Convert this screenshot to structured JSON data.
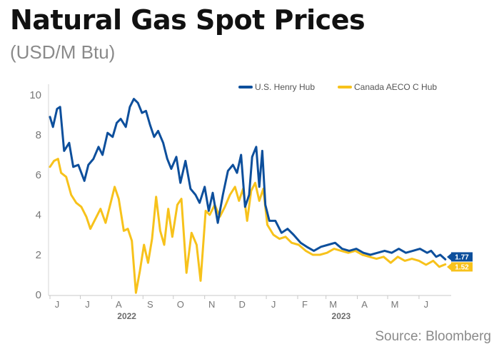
{
  "chart_data": {
    "type": "line",
    "title": "Natural Gas Spot Prices",
    "subtitle": "(USD/M Btu)",
    "source": "Source: Bloomberg",
    "ylim": [
      0,
      10
    ],
    "y_ticks": [
      "0",
      "2",
      "4",
      "6",
      "8",
      "10"
    ],
    "x_range": [
      "2022-06-01",
      "2023-06-30"
    ],
    "x_ticks": [
      {
        "label": "J",
        "date": "2022-06-01"
      },
      {
        "label": "J",
        "date": "2022-07-01"
      },
      {
        "label": "A",
        "date": "2022-08-01"
      },
      {
        "label": "S",
        "date": "2022-09-01"
      },
      {
        "label": "O",
        "date": "2022-10-01"
      },
      {
        "label": "N",
        "date": "2022-11-01"
      },
      {
        "label": "D",
        "date": "2022-12-01"
      },
      {
        "label": "J",
        "date": "2023-01-01"
      },
      {
        "label": "F",
        "date": "2023-02-01"
      },
      {
        "label": "M",
        "date": "2023-03-01"
      },
      {
        "label": "A",
        "date": "2023-04-01"
      },
      {
        "label": "M",
        "date": "2023-05-01"
      },
      {
        "label": "J",
        "date": "2023-06-01"
      }
    ],
    "years": [
      {
        "label": "2022",
        "date": "2022-08-16"
      },
      {
        "label": "2023",
        "date": "2023-03-16"
      }
    ],
    "grid": false,
    "legend_position": "top-right",
    "series": [
      {
        "name": "U.S. Henry Hub",
        "color": "#0d4f9c",
        "end_label": "1.77",
        "points": [
          [
            "2022-06-01",
            8.9
          ],
          [
            "2022-06-04",
            8.4
          ],
          [
            "2022-06-08",
            9.3
          ],
          [
            "2022-06-11",
            9.4
          ],
          [
            "2022-06-15",
            7.2
          ],
          [
            "2022-06-20",
            7.6
          ],
          [
            "2022-06-24",
            6.4
          ],
          [
            "2022-06-29",
            6.5
          ],
          [
            "2022-07-05",
            5.7
          ],
          [
            "2022-07-09",
            6.5
          ],
          [
            "2022-07-14",
            6.8
          ],
          [
            "2022-07-19",
            7.4
          ],
          [
            "2022-07-23",
            7.0
          ],
          [
            "2022-07-28",
            8.1
          ],
          [
            "2022-08-02",
            7.9
          ],
          [
            "2022-08-06",
            8.6
          ],
          [
            "2022-08-10",
            8.8
          ],
          [
            "2022-08-15",
            8.4
          ],
          [
            "2022-08-19",
            9.4
          ],
          [
            "2022-08-23",
            9.8
          ],
          [
            "2022-08-27",
            9.6
          ],
          [
            "2022-08-31",
            9.1
          ],
          [
            "2022-09-04",
            9.2
          ],
          [
            "2022-09-08",
            8.5
          ],
          [
            "2022-09-12",
            7.9
          ],
          [
            "2022-09-16",
            8.2
          ],
          [
            "2022-09-21",
            7.6
          ],
          [
            "2022-09-25",
            6.8
          ],
          [
            "2022-09-29",
            6.3
          ],
          [
            "2022-10-04",
            6.9
          ],
          [
            "2022-10-08",
            5.6
          ],
          [
            "2022-10-13",
            6.7
          ],
          [
            "2022-10-18",
            5.3
          ],
          [
            "2022-10-23",
            5.0
          ],
          [
            "2022-10-27",
            4.6
          ],
          [
            "2022-11-01",
            5.4
          ],
          [
            "2022-11-05",
            4.2
          ],
          [
            "2022-11-09",
            5.1
          ],
          [
            "2022-11-14",
            3.6
          ],
          [
            "2022-11-19",
            5.0
          ],
          [
            "2022-11-24",
            6.2
          ],
          [
            "2022-11-29",
            6.5
          ],
          [
            "2022-12-03",
            6.1
          ],
          [
            "2022-12-07",
            7.0
          ],
          [
            "2022-12-11",
            4.4
          ],
          [
            "2022-12-15",
            5.0
          ],
          [
            "2022-12-18",
            6.9
          ],
          [
            "2022-12-22",
            7.4
          ],
          [
            "2022-12-25",
            5.4
          ],
          [
            "2022-12-28",
            7.2
          ],
          [
            "2022-12-31",
            4.5
          ],
          [
            "2023-01-04",
            3.7
          ],
          [
            "2023-01-10",
            3.7
          ],
          [
            "2023-01-16",
            3.1
          ],
          [
            "2023-01-22",
            3.3
          ],
          [
            "2023-01-28",
            3.0
          ],
          [
            "2023-02-04",
            2.6
          ],
          [
            "2023-02-10",
            2.4
          ],
          [
            "2023-02-17",
            2.2
          ],
          [
            "2023-02-24",
            2.4
          ],
          [
            "2023-03-03",
            2.5
          ],
          [
            "2023-03-10",
            2.6
          ],
          [
            "2023-03-17",
            2.3
          ],
          [
            "2023-03-24",
            2.2
          ],
          [
            "2023-03-31",
            2.3
          ],
          [
            "2023-04-07",
            2.1
          ],
          [
            "2023-04-14",
            2.0
          ],
          [
            "2023-04-21",
            2.1
          ],
          [
            "2023-04-28",
            2.2
          ],
          [
            "2023-05-05",
            2.1
          ],
          [
            "2023-05-12",
            2.3
          ],
          [
            "2023-05-19",
            2.1
          ],
          [
            "2023-05-26",
            2.2
          ],
          [
            "2023-06-02",
            2.3
          ],
          [
            "2023-06-09",
            2.1
          ],
          [
            "2023-06-13",
            2.2
          ],
          [
            "2023-06-18",
            1.9
          ],
          [
            "2023-06-22",
            2.0
          ],
          [
            "2023-06-27",
            1.77
          ]
        ]
      },
      {
        "name": "Canada AECO C Hub",
        "color": "#f7c21b",
        "end_label": "1.52",
        "points": [
          [
            "2022-06-01",
            6.4
          ],
          [
            "2022-06-05",
            6.7
          ],
          [
            "2022-06-09",
            6.8
          ],
          [
            "2022-06-12",
            6.1
          ],
          [
            "2022-06-17",
            5.9
          ],
          [
            "2022-06-22",
            5.0
          ],
          [
            "2022-06-27",
            4.6
          ],
          [
            "2022-07-02",
            4.4
          ],
          [
            "2022-07-07",
            3.9
          ],
          [
            "2022-07-11",
            3.3
          ],
          [
            "2022-07-16",
            3.8
          ],
          [
            "2022-07-21",
            4.3
          ],
          [
            "2022-07-26",
            3.6
          ],
          [
            "2022-07-31",
            4.6
          ],
          [
            "2022-08-04",
            5.4
          ],
          [
            "2022-08-08",
            4.8
          ],
          [
            "2022-08-13",
            3.2
          ],
          [
            "2022-08-17",
            3.3
          ],
          [
            "2022-08-21",
            2.7
          ],
          [
            "2022-08-25",
            0.1
          ],
          [
            "2022-08-29",
            1.2
          ],
          [
            "2022-09-02",
            2.5
          ],
          [
            "2022-09-06",
            1.6
          ],
          [
            "2022-09-10",
            2.8
          ],
          [
            "2022-09-14",
            4.9
          ],
          [
            "2022-09-18",
            3.2
          ],
          [
            "2022-09-22",
            2.5
          ],
          [
            "2022-09-26",
            4.3
          ],
          [
            "2022-09-30",
            2.9
          ],
          [
            "2022-10-05",
            4.5
          ],
          [
            "2022-10-09",
            4.8
          ],
          [
            "2022-10-14",
            1.1
          ],
          [
            "2022-10-19",
            3.1
          ],
          [
            "2022-10-24",
            2.5
          ],
          [
            "2022-10-28",
            0.7
          ],
          [
            "2022-11-02",
            4.2
          ],
          [
            "2022-11-06",
            4.0
          ],
          [
            "2022-11-11",
            4.5
          ],
          [
            "2022-11-16",
            3.9
          ],
          [
            "2022-11-21",
            4.4
          ],
          [
            "2022-11-26",
            5.0
          ],
          [
            "2022-12-01",
            5.4
          ],
          [
            "2022-12-05",
            4.7
          ],
          [
            "2022-12-09",
            5.3
          ],
          [
            "2022-12-13",
            3.7
          ],
          [
            "2022-12-17",
            5.2
          ],
          [
            "2022-12-21",
            5.6
          ],
          [
            "2022-12-25",
            4.7
          ],
          [
            "2022-12-29",
            5.3
          ],
          [
            "2023-01-02",
            3.5
          ],
          [
            "2023-01-08",
            3.0
          ],
          [
            "2023-01-14",
            2.8
          ],
          [
            "2023-01-20",
            2.9
          ],
          [
            "2023-01-26",
            2.6
          ],
          [
            "2023-02-02",
            2.5
          ],
          [
            "2023-02-09",
            2.2
          ],
          [
            "2023-02-16",
            2.0
          ],
          [
            "2023-02-23",
            2.0
          ],
          [
            "2023-03-02",
            2.1
          ],
          [
            "2023-03-09",
            2.3
          ],
          [
            "2023-03-16",
            2.2
          ],
          [
            "2023-03-23",
            2.1
          ],
          [
            "2023-03-30",
            2.2
          ],
          [
            "2023-04-06",
            2.0
          ],
          [
            "2023-04-13",
            1.9
          ],
          [
            "2023-04-20",
            1.8
          ],
          [
            "2023-04-27",
            1.9
          ],
          [
            "2023-05-04",
            1.6
          ],
          [
            "2023-05-11",
            1.9
          ],
          [
            "2023-05-18",
            1.7
          ],
          [
            "2023-05-25",
            1.8
          ],
          [
            "2023-06-01",
            1.7
          ],
          [
            "2023-06-08",
            1.5
          ],
          [
            "2023-06-15",
            1.7
          ],
          [
            "2023-06-21",
            1.4
          ],
          [
            "2023-06-27",
            1.52
          ]
        ]
      }
    ]
  }
}
